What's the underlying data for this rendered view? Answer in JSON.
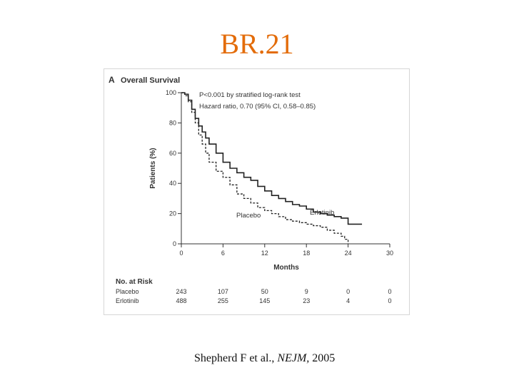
{
  "slide": {
    "title": "BR.21",
    "title_color": "#e36c0a",
    "citation_prefix": "Shepherd F et al., ",
    "citation_journal": "NEJM,",
    "citation_year": " 2005"
  },
  "chart_data": {
    "type": "line",
    "panel_letter": "A",
    "title": "Overall Survival",
    "xlabel": "Months",
    "ylabel": "Patients (%)",
    "xlim": [
      0,
      30
    ],
    "ylim": [
      0,
      100
    ],
    "xticks": [
      0,
      6,
      12,
      18,
      24,
      30
    ],
    "yticks": [
      0,
      20,
      40,
      60,
      80,
      100
    ],
    "annotations": [
      "P<0.001 by stratified log-rank test",
      "Hazard ratio, 0.70 (95% CI, 0.58–0.85)"
    ],
    "series": [
      {
        "name": "Erlotinib",
        "style": "solid",
        "x": [
          0,
          0.5,
          1,
          1.5,
          2,
          2.5,
          3,
          3.5,
          4,
          5,
          6,
          7,
          8,
          9,
          10,
          11,
          12,
          13,
          14,
          15,
          16,
          17,
          18,
          19,
          20,
          21,
          22,
          23,
          24,
          25,
          26
        ],
        "y": [
          100,
          99,
          95,
          89,
          83,
          78,
          74,
          70,
          66,
          60,
          54,
          50,
          47,
          44,
          42,
          38,
          35,
          32,
          30,
          28,
          26,
          25,
          23,
          21,
          20,
          19,
          18,
          17,
          13,
          13,
          13
        ]
      },
      {
        "name": "Placebo",
        "style": "dashed",
        "x": [
          0,
          0.5,
          1,
          1.5,
          2,
          2.5,
          3,
          3.5,
          4,
          5,
          6,
          7,
          8,
          9,
          10,
          11,
          12,
          13,
          14,
          15,
          16,
          17,
          18,
          19,
          20,
          21,
          22,
          23,
          23.5,
          24
        ],
        "y": [
          100,
          98,
          94,
          87,
          80,
          72,
          66,
          60,
          54,
          48,
          44,
          39,
          33,
          30,
          27,
          24,
          22,
          20,
          18,
          16,
          15,
          14,
          13,
          12,
          11,
          9,
          7,
          5,
          3,
          0
        ]
      }
    ],
    "risk_table": {
      "header": "No. at Risk",
      "rows": [
        {
          "label": "Placebo",
          "values": [
            "243",
            "107",
            "50",
            "9",
            "0",
            "0"
          ]
        },
        {
          "label": "Erlotinib",
          "values": [
            "488",
            "255",
            "145",
            "23",
            "4",
            "0"
          ]
        }
      ]
    }
  }
}
